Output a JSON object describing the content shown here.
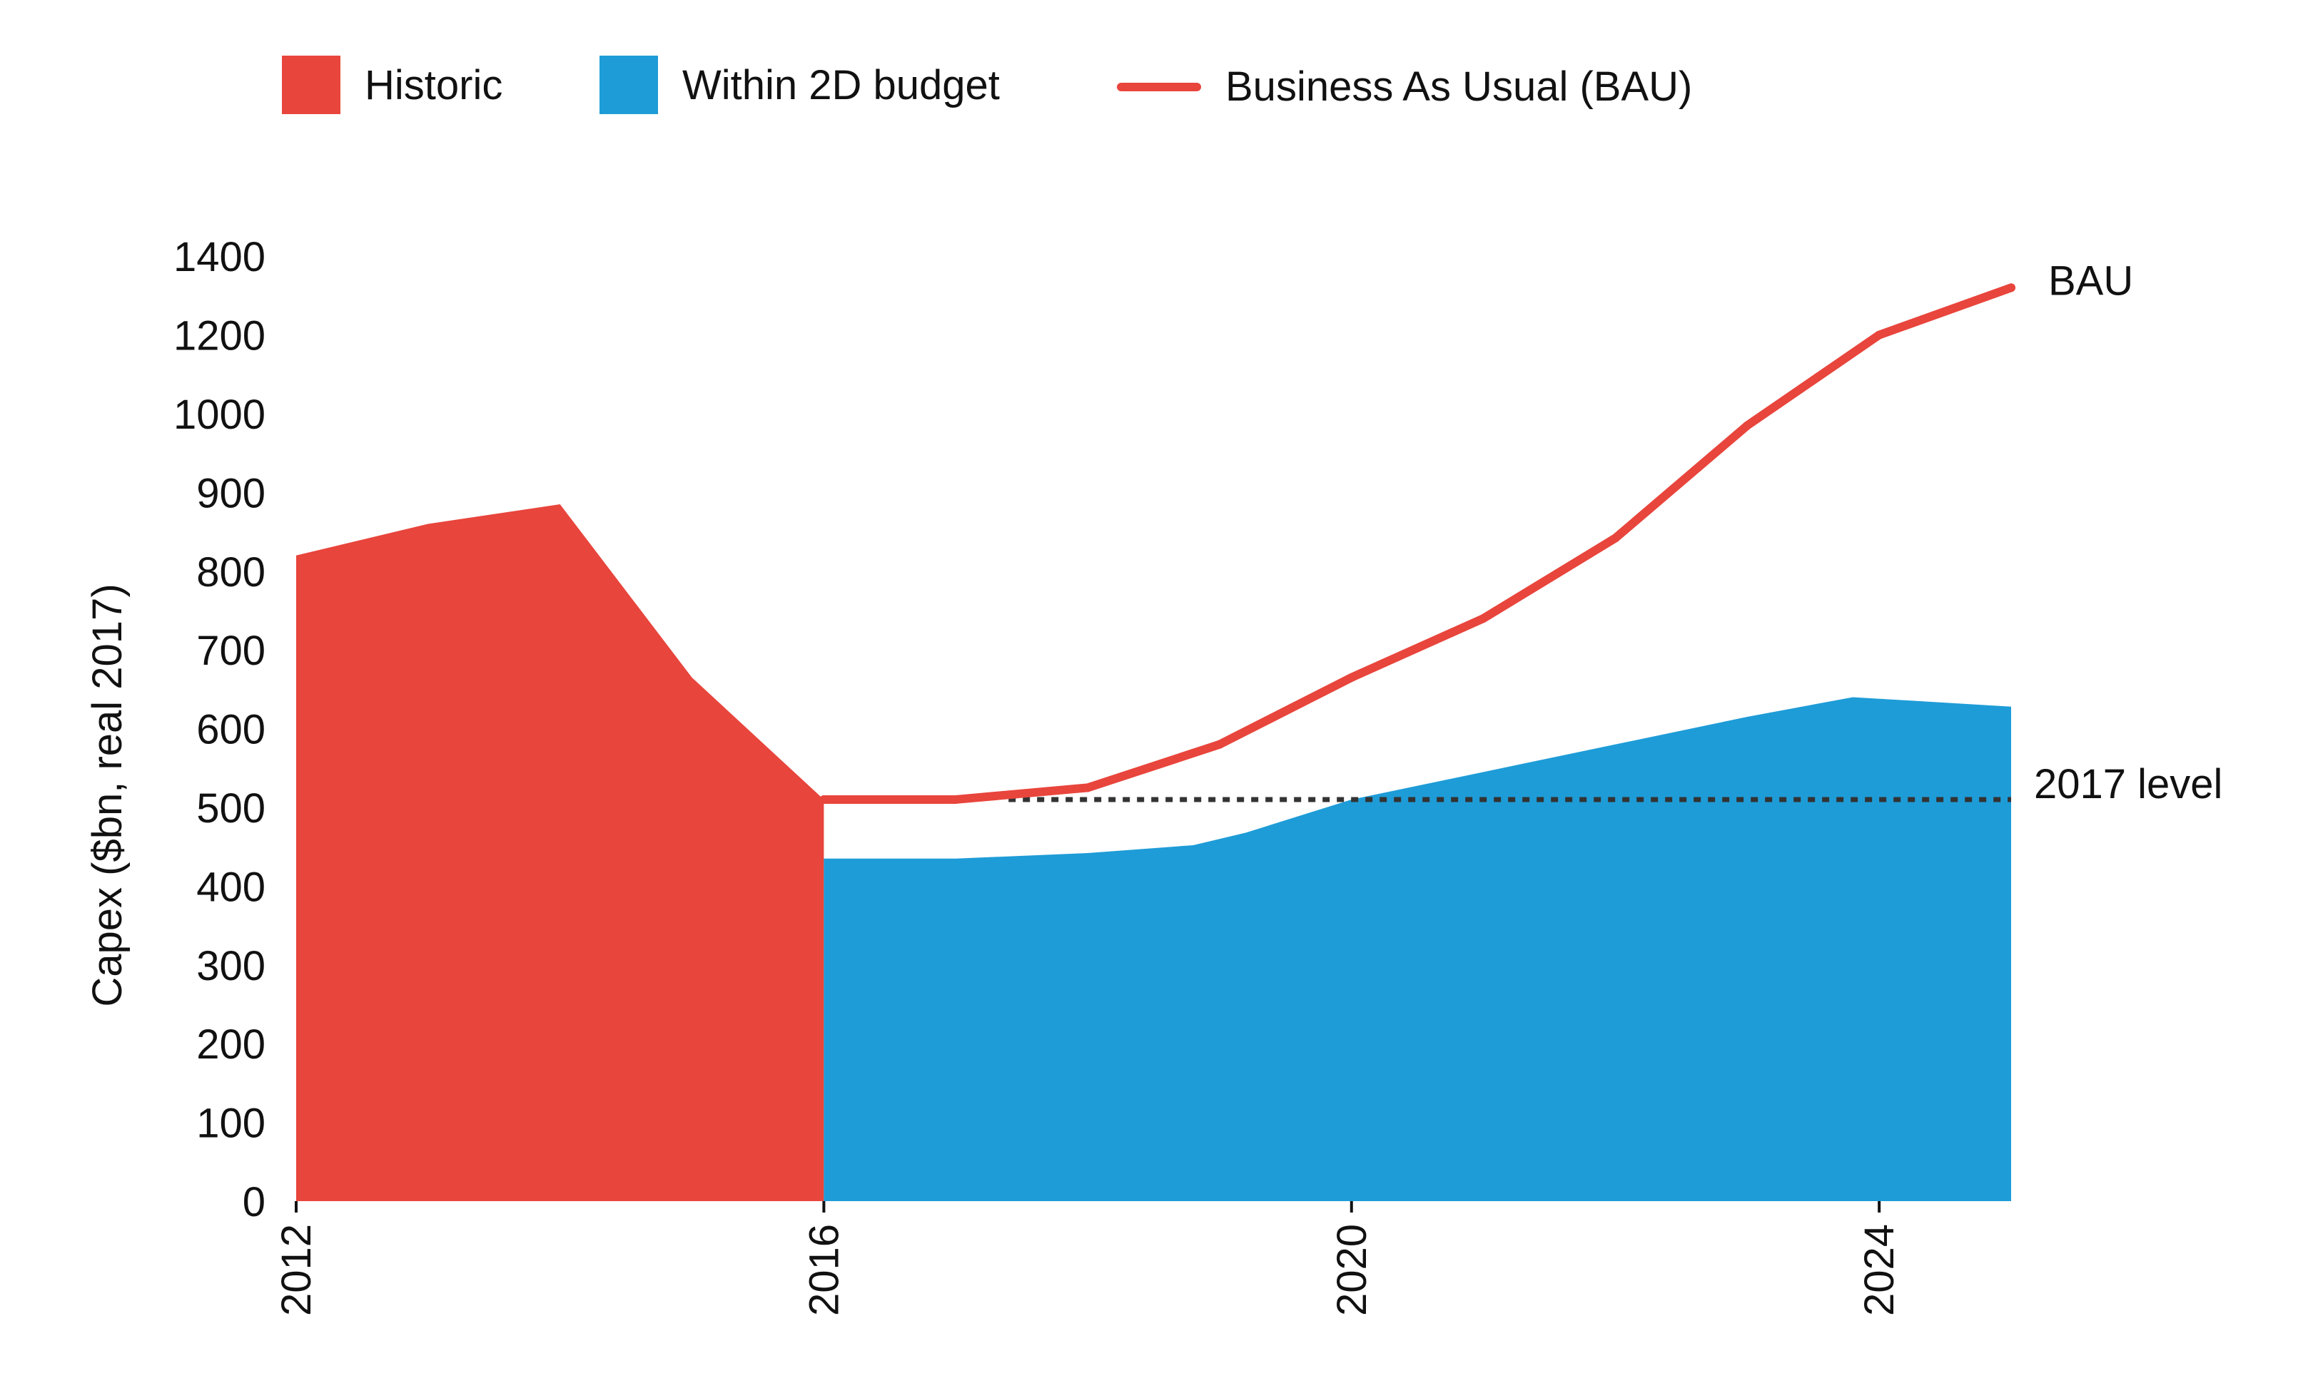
{
  "legend": {
    "historic": "Historic",
    "within_budget": "Within 2D budget",
    "bau": "Business As Usual (BAU)"
  },
  "colors": {
    "historic": "#e8453c",
    "within_budget": "#1e9cd7",
    "bau": "#e8453c",
    "reference": "#333333"
  },
  "chart_data": {
    "type": "area",
    "xlabel": "",
    "ylabel": "Capex ($bn, real 2017)",
    "x_ticks": [
      2012,
      2016,
      2020,
      2024
    ],
    "y_ticks": [
      0,
      100,
      200,
      300,
      400,
      500,
      600,
      700,
      800,
      900,
      1000,
      1200,
      1400
    ],
    "y_tick_note": "axis is non-linear above 900: 1000, 1200 and 1400 ticks are spaced like 100-unit steps",
    "xlim": [
      2012,
      2025
    ],
    "grid": false,
    "legend_placement": "top",
    "series": [
      {
        "name": "Historic",
        "type": "area",
        "x": [
          2012,
          2013,
          2014,
          2015,
          2016
        ],
        "y": [
          820,
          860,
          885,
          665,
          510
        ]
      },
      {
        "name": "Within 2D budget",
        "type": "area",
        "x": [
          2016,
          2017,
          2018,
          2018.8,
          2019.2,
          2020,
          2021,
          2022,
          2023,
          2023.8,
          2025
        ],
        "y": [
          435,
          435,
          442,
          452,
          468,
          510,
          545,
          580,
          615,
          640,
          628
        ]
      },
      {
        "name": "Business As Usual (BAU)",
        "type": "line",
        "x": [
          2016,
          2017,
          2018,
          2019,
          2020,
          2021,
          2022,
          2023,
          2024,
          2025
        ],
        "y": [
          510,
          510,
          525,
          580,
          665,
          740,
          842,
          985,
          1200,
          1320
        ]
      }
    ],
    "reference_line": {
      "label": "2017 level",
      "y": 510,
      "x_start": 2017.4,
      "x_end": 2025
    },
    "annotations": [
      {
        "text": "BAU",
        "x": 2025,
        "y": 1320
      },
      {
        "text": "2017 level",
        "x": 2025,
        "y": 510
      }
    ]
  }
}
